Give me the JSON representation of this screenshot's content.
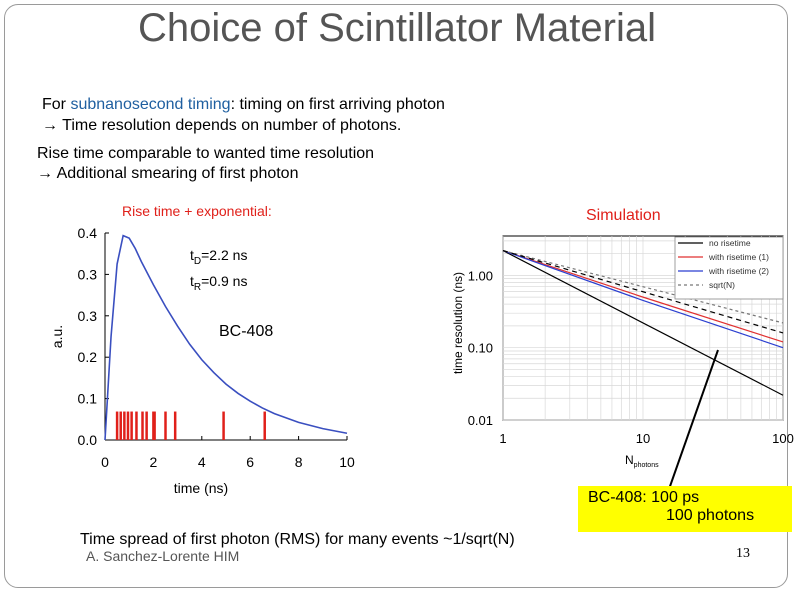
{
  "slide": {
    "title": "Choice of Scintillator Material",
    "line1_prefix": "For ",
    "line1_highlight": "subnanosecond timing",
    "line1_suffix": ": timing on first arriving photon",
    "line2": "→ Time resolution depends on number of photons.",
    "line3": "Rise time comparable to wanted time resolution",
    "line4": "→ Additional smearing of first photon",
    "left_caption": "Rise time + exponential:",
    "right_caption": "Simulation",
    "material_label": "BC-408",
    "td_label": "t",
    "td_sub": "D",
    "td_value": "=2.2 ns",
    "tr_label": "t",
    "tr_sub": "R",
    "tr_value": "=0.9 ns",
    "callout_line1": "BC-408:  100 ps",
    "callout_line2": "100 photons",
    "bottom_text": "Time spread of first photon (RMS) for many events ~1/sqrt(N)",
    "footer": "A. Sanchez-Lorente HIM",
    "page_number": "13"
  },
  "chart_data": [
    {
      "type": "line",
      "title": "",
      "xlabel": "time (ns)",
      "ylabel": "a.u.",
      "xlim": [
        0,
        10
      ],
      "ylim": [
        0,
        0.4
      ],
      "x_ticks": [
        0,
        2,
        4,
        6,
        8,
        10
      ],
      "y_ticks": [
        "0.0",
        "0.1",
        "0.2",
        "0.3",
        "0.3",
        "0.4"
      ],
      "series": [
        {
          "color": "#3a4fc0",
          "x": [
            0,
            0.25,
            0.5,
            0.75,
            1.0,
            1.25,
            1.5,
            2.0,
            2.5,
            3.0,
            3.5,
            4.0,
            4.5,
            5.0,
            5.5,
            6.0,
            6.5,
            7.0,
            8.0,
            9.0,
            10.0
          ],
          "y": [
            0,
            0.2,
            0.34,
            0.395,
            0.39,
            0.37,
            0.345,
            0.3,
            0.258,
            0.22,
            0.185,
            0.155,
            0.13,
            0.108,
            0.09,
            0.075,
            0.062,
            0.051,
            0.034,
            0.022,
            0.013
          ]
        }
      ],
      "photon_markers": {
        "color": "#e0201a",
        "x": [
          0.5,
          0.65,
          0.8,
          0.95,
          1.1,
          1.3,
          1.55,
          1.72,
          2.0,
          2.05,
          2.5,
          2.9,
          4.9,
          6.6
        ],
        "height": 0.055
      }
    },
    {
      "type": "line",
      "title": "",
      "xlabel": "N",
      "xlabel_sub": "photons",
      "ylabel": "time resolution (ns)",
      "x_scale": "log",
      "y_scale": "log",
      "xlim": [
        1,
        100
      ],
      "ylim": [
        0.01,
        3.5
      ],
      "x_ticks": [
        "1",
        "10",
        "100"
      ],
      "y_ticks": [
        "0.01",
        "0.10",
        "1.00"
      ],
      "grid": true,
      "legend_position": "top-right",
      "series": [
        {
          "name": "no risetime",
          "color": "#000000",
          "dash": "",
          "x": [
            1,
            100
          ],
          "y": [
            2.2,
            0.022
          ]
        },
        {
          "name": "with risetime (1)",
          "color": "#e03030",
          "dash": "",
          "x": [
            1,
            10,
            100
          ],
          "y": [
            2.2,
            0.5,
            0.12
          ]
        },
        {
          "name": "with risetime (2)",
          "color": "#2b3fd0",
          "dash": "",
          "x": [
            1,
            10,
            100
          ],
          "y": [
            2.2,
            0.45,
            0.1
          ]
        },
        {
          "name": "sqrt(N)",
          "color": "#777777",
          "dash": "3,3",
          "x": [
            1,
            100
          ],
          "y": [
            2.2,
            0.22
          ]
        },
        {
          "name": "",
          "color": "#000000",
          "dash": "5,4",
          "x": [
            1,
            100
          ],
          "y": [
            2.2,
            0.16
          ]
        }
      ]
    }
  ]
}
